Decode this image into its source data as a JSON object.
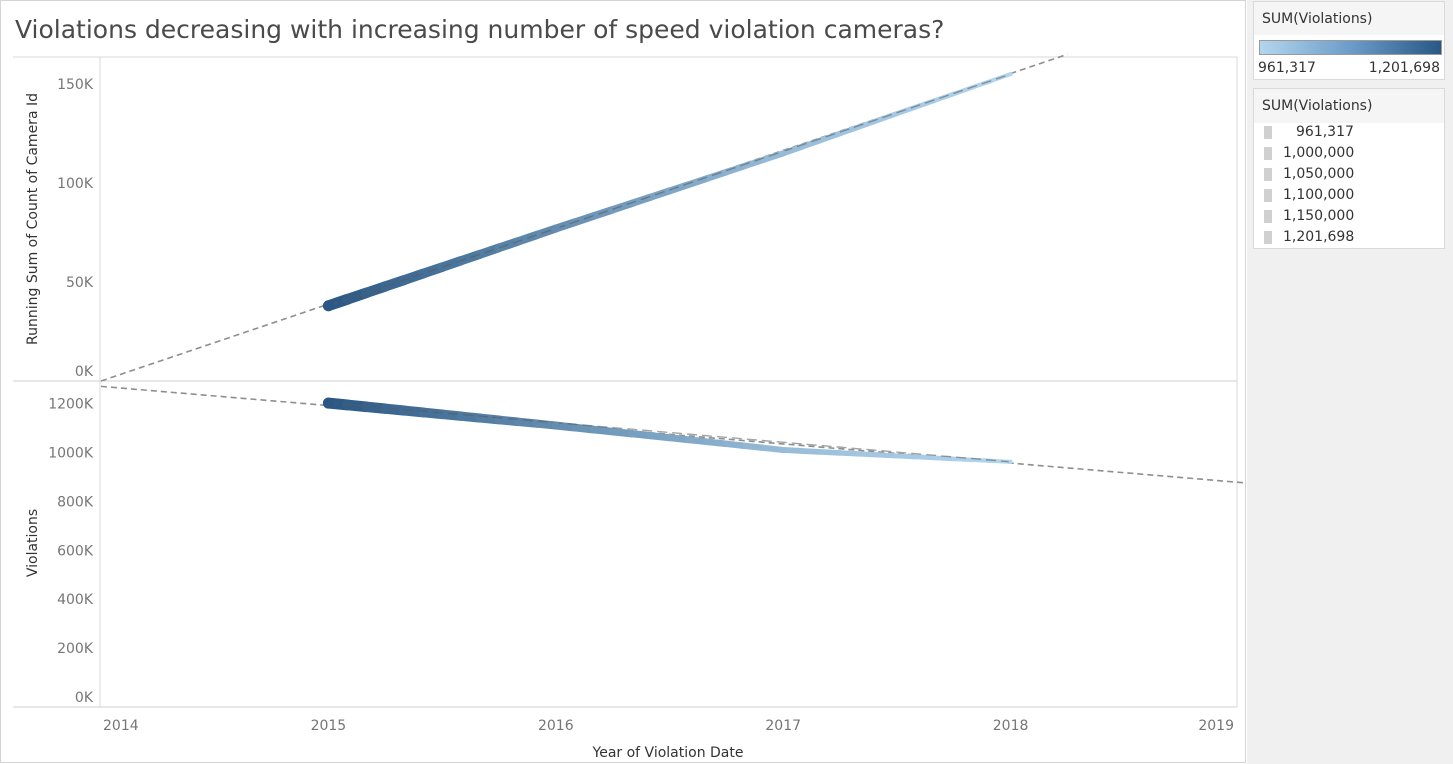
{
  "title": "Violations decreasing with increasing number of speed violation cameras?",
  "legends": {
    "color": {
      "title": "SUM(Violations)",
      "min_label": "961,317",
      "max_label": "1,201,698",
      "color_low": "#b3d6ee",
      "color_high": "#2a5783"
    },
    "size": {
      "title": "SUM(Violations)",
      "items": [
        "961,317",
        "1,000,000",
        "1,050,000",
        "1,100,000",
        "1,150,000",
        "1,201,698"
      ]
    }
  },
  "chart_data": [
    {
      "type": "line",
      "panel": "top",
      "xlabel": "Year of Violation Date",
      "ylabel": "Running Sum of Count of Camera Id",
      "x_ticks": [
        "2014",
        "2015",
        "2016",
        "2017",
        "2018",
        "2019"
      ],
      "y_ticks": [
        "0K",
        "50K",
        "100K",
        "150K"
      ],
      "ylim": [
        0,
        160000
      ],
      "x": [
        2015,
        2016,
        2017,
        2018
      ],
      "values": [
        38000,
        77000,
        115000,
        155000
      ],
      "color_values": [
        1201698,
        1100000,
        1010000,
        961317
      ],
      "trend_line": {
        "style": "dashed",
        "x": [
          2014,
          2018.25
        ],
        "y": [
          0,
          165000
        ]
      },
      "grid": false
    },
    {
      "type": "line",
      "panel": "bottom",
      "xlabel": "Year of Violation Date",
      "ylabel": "Violations",
      "x_ticks": [
        "2014",
        "2015",
        "2016",
        "2017",
        "2018",
        "2019"
      ],
      "y_ticks": [
        "0K",
        "200K",
        "400K",
        "600K",
        "800K",
        "1000K",
        "1200K"
      ],
      "ylim": [
        0,
        1270000
      ],
      "x": [
        2015,
        2016,
        2017,
        2018
      ],
      "values": [
        1201698,
        1110000,
        1010000,
        961317
      ],
      "color_values": [
        1201698,
        1100000,
        1010000,
        961317
      ],
      "trend_line": {
        "style": "dashed",
        "x": [
          2014,
          2019.1
        ],
        "y": [
          1270000,
          870000
        ]
      },
      "grid": false
    }
  ]
}
